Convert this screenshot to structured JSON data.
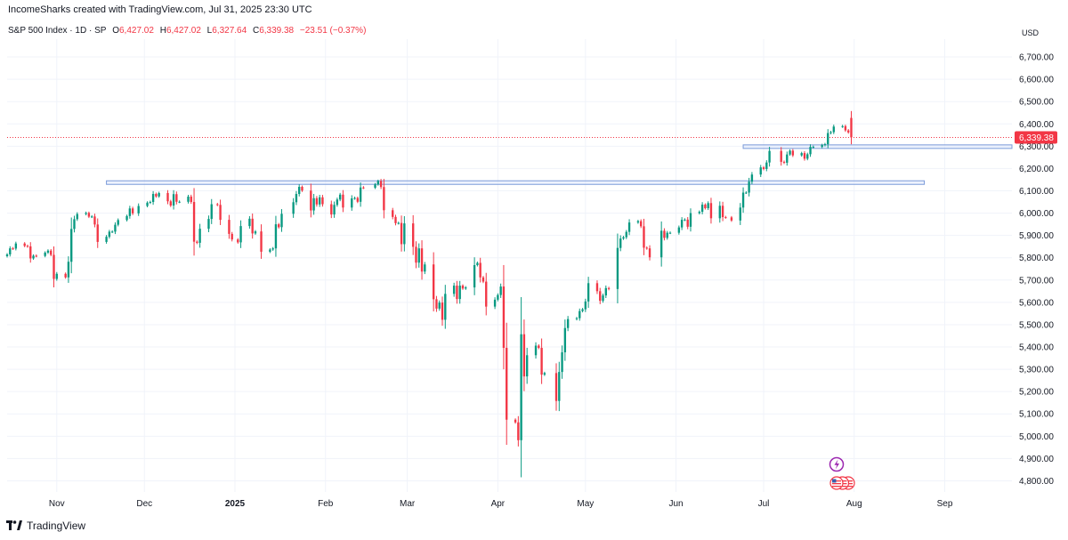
{
  "header": {
    "credit": "IncomeSharks created with TradingView.com, Jul 31, 2025 23:30 UTC"
  },
  "legend": {
    "symbol": "S&P 500 Index · 1D · SP",
    "open_label": "O",
    "open": "6,427.02",
    "high_label": "H",
    "high": "6,427.02",
    "low_label": "L",
    "low": "6,327.64",
    "close_label": "C",
    "close": "6,339.38",
    "change": "−23.51 (−0.37%)"
  },
  "price_axis": {
    "currency": "USD"
  },
  "last_price_label": "6,339.38",
  "branding": {
    "logo_text": "TradingView"
  },
  "colors": {
    "up": "#089981",
    "down": "#f23645",
    "zone_border": "#7b9bd9",
    "zone_fill": "#dfe8fb",
    "grid": "#f0f3fa",
    "axis_text": "#131722",
    "event_purple": "#9c27b0"
  },
  "event_icons": [
    "earnings-lightning-icon",
    "us-flag-icon",
    "us-flag-icon",
    "us-flag-icon"
  ],
  "chart_data": {
    "type": "candlestick",
    "title": "S&P 500 Index · 1D · SP",
    "ylabel": "USD",
    "ylim": [
      4750,
      6780
    ],
    "y_ticks": [
      "6,700.00",
      "6,600.00",
      "6,500.00",
      "6,400.00",
      "6,300.00",
      "6,200.00",
      "6,100.00",
      "6,000.00",
      "5,900.00",
      "5,800.00",
      "5,700.00",
      "5,600.00",
      "5,500.00",
      "5,400.00",
      "5,300.00",
      "5,200.00",
      "5,100.00",
      "5,000.00",
      "4,900.00",
      "4,800.00"
    ],
    "x_ticks": [
      {
        "label": "Nov",
        "date": "2024-11-01",
        "bold": false
      },
      {
        "label": "Dec",
        "date": "2024-12-01",
        "bold": false
      },
      {
        "label": "2025",
        "date": "2025-01-01",
        "bold": true
      },
      {
        "label": "Feb",
        "date": "2025-02-01",
        "bold": false
      },
      {
        "label": "Mar",
        "date": "2025-03-01",
        "bold": false
      },
      {
        "label": "Apr",
        "date": "2025-04-01",
        "bold": false
      },
      {
        "label": "May",
        "date": "2025-05-01",
        "bold": false
      },
      {
        "label": "Jun",
        "date": "2025-06-01",
        "bold": false
      },
      {
        "label": "Jul",
        "date": "2025-07-01",
        "bold": false
      },
      {
        "label": "Aug",
        "date": "2025-08-01",
        "bold": false
      },
      {
        "label": "Sep",
        "date": "2025-09-01",
        "bold": false
      }
    ],
    "x_range": [
      "2024-10-15",
      "2025-09-24"
    ],
    "last_price": 6339.38,
    "zones": [
      {
        "from": "2024-11-18",
        "to": "2025-08-25",
        "low": 6129,
        "high": 6145
      },
      {
        "from": "2025-06-24",
        "to": "2025-09-30",
        "low": 6291,
        "high": 6306
      }
    ],
    "candles": [
      {
        "date": "2024-10-15",
        "close": 5815
      },
      {
        "date": "2024-10-16",
        "close": 5842
      },
      {
        "date": "2024-10-17",
        "close": 5841
      },
      {
        "date": "2024-10-18",
        "close": 5864
      },
      {
        "date": "2024-10-21",
        "close": 5853
      },
      {
        "date": "2024-10-22",
        "close": 5851
      },
      {
        "date": "2024-10-23",
        "close": 5797
      },
      {
        "date": "2024-10-24",
        "close": 5809
      },
      {
        "date": "2024-10-25",
        "close": 5808
      },
      {
        "date": "2024-10-28",
        "close": 5823
      },
      {
        "date": "2024-10-29",
        "close": 5832
      },
      {
        "date": "2024-10-30",
        "close": 5813
      },
      {
        "date": "2024-10-31",
        "close": 5705
      },
      {
        "date": "2024-11-01",
        "close": 5728
      },
      {
        "date": "2024-11-04",
        "close": 5712
      },
      {
        "date": "2024-11-05",
        "close": 5782
      },
      {
        "date": "2024-11-06",
        "close": 5929
      },
      {
        "date": "2024-11-07",
        "close": 5973
      },
      {
        "date": "2024-11-08",
        "close": 5996
      },
      {
        "date": "2024-11-11",
        "close": 6001
      },
      {
        "date": "2024-11-12",
        "close": 5984
      },
      {
        "date": "2024-11-13",
        "close": 5985
      },
      {
        "date": "2024-11-14",
        "close": 5949
      },
      {
        "date": "2024-11-15",
        "close": 5871
      },
      {
        "date": "2024-11-18",
        "close": 5894
      },
      {
        "date": "2024-11-19",
        "close": 5917
      },
      {
        "date": "2024-11-20",
        "close": 5917
      },
      {
        "date": "2024-11-21",
        "close": 5948
      },
      {
        "date": "2024-11-22",
        "close": 5969
      },
      {
        "date": "2024-11-25",
        "close": 5987
      },
      {
        "date": "2024-11-26",
        "close": 6021
      },
      {
        "date": "2024-11-27",
        "close": 5999
      },
      {
        "date": "2024-11-29",
        "close": 6032
      },
      {
        "date": "2024-12-02",
        "close": 6047
      },
      {
        "date": "2024-12-03",
        "close": 6050
      },
      {
        "date": "2024-12-04",
        "close": 6086
      },
      {
        "date": "2024-12-05",
        "close": 6075
      },
      {
        "date": "2024-12-06",
        "close": 6090
      },
      {
        "date": "2024-12-09",
        "close": 6053
      },
      {
        "date": "2024-12-10",
        "close": 6034
      },
      {
        "date": "2024-12-11",
        "close": 6085
      },
      {
        "date": "2024-12-12",
        "close": 6051
      },
      {
        "date": "2024-12-13",
        "close": 6051
      },
      {
        "date": "2024-12-16",
        "close": 6074
      },
      {
        "date": "2024-12-17",
        "close": 6050
      },
      {
        "date": "2024-12-18",
        "close": 5872
      },
      {
        "date": "2024-12-19",
        "close": 5867
      },
      {
        "date": "2024-12-20",
        "close": 5930
      },
      {
        "date": "2024-12-23",
        "close": 5974
      },
      {
        "date": "2024-12-24",
        "close": 6040
      },
      {
        "date": "2024-12-26",
        "close": 6037
      },
      {
        "date": "2024-12-27",
        "close": 5970
      },
      {
        "date": "2024-12-30",
        "close": 5907
      },
      {
        "date": "2024-12-31",
        "close": 5882
      },
      {
        "date": "2025-01-02",
        "close": 5869
      },
      {
        "date": "2025-01-03",
        "close": 5942
      },
      {
        "date": "2025-01-06",
        "close": 5975
      },
      {
        "date": "2025-01-07",
        "close": 5909
      },
      {
        "date": "2025-01-08",
        "close": 5918
      },
      {
        "date": "2025-01-10",
        "close": 5827
      },
      {
        "date": "2025-01-13",
        "close": 5837
      },
      {
        "date": "2025-01-14",
        "close": 5842
      },
      {
        "date": "2025-01-15",
        "close": 5950
      },
      {
        "date": "2025-01-16",
        "close": 5937
      },
      {
        "date": "2025-01-17",
        "close": 5997
      },
      {
        "date": "2025-01-21",
        "close": 6049
      },
      {
        "date": "2025-01-22",
        "close": 6086
      },
      {
        "date": "2025-01-23",
        "close": 6118
      },
      {
        "date": "2025-01-24",
        "close": 6101
      },
      {
        "date": "2025-01-27",
        "close": 6012
      },
      {
        "date": "2025-01-28",
        "close": 6067
      },
      {
        "date": "2025-01-29",
        "close": 6039
      },
      {
        "date": "2025-01-30",
        "close": 6071
      },
      {
        "date": "2025-01-31",
        "close": 6040
      },
      {
        "date": "2025-02-03",
        "close": 5994
      },
      {
        "date": "2025-02-04",
        "close": 6037
      },
      {
        "date": "2025-02-05",
        "close": 6061
      },
      {
        "date": "2025-02-06",
        "close": 6083
      },
      {
        "date": "2025-02-07",
        "close": 6025
      },
      {
        "date": "2025-02-10",
        "close": 6066
      },
      {
        "date": "2025-02-11",
        "close": 6068
      },
      {
        "date": "2025-02-12",
        "close": 6051
      },
      {
        "date": "2025-02-13",
        "close": 6115
      },
      {
        "date": "2025-02-14",
        "close": 6114
      },
      {
        "date": "2025-02-18",
        "close": 6129
      },
      {
        "date": "2025-02-19",
        "close": 6144
      },
      {
        "date": "2025-02-20",
        "close": 6117
      },
      {
        "date": "2025-02-21",
        "close": 6013
      },
      {
        "date": "2025-02-24",
        "close": 5983
      },
      {
        "date": "2025-02-25",
        "close": 5955
      },
      {
        "date": "2025-02-26",
        "close": 5956
      },
      {
        "date": "2025-02-27",
        "close": 5861
      },
      {
        "date": "2025-02-28",
        "close": 5954
      },
      {
        "date": "2025-03-03",
        "close": 5849
      },
      {
        "date": "2025-03-04",
        "close": 5778
      },
      {
        "date": "2025-03-05",
        "close": 5842
      },
      {
        "date": "2025-03-06",
        "close": 5738
      },
      {
        "date": "2025-03-07",
        "close": 5770
      },
      {
        "date": "2025-03-10",
        "close": 5614
      },
      {
        "date": "2025-03-11",
        "close": 5572
      },
      {
        "date": "2025-03-12",
        "close": 5599
      },
      {
        "date": "2025-03-13",
        "close": 5522
      },
      {
        "date": "2025-03-14",
        "close": 5638
      },
      {
        "date": "2025-03-17",
        "close": 5675
      },
      {
        "date": "2025-03-18",
        "close": 5615
      },
      {
        "date": "2025-03-19",
        "close": 5675
      },
      {
        "date": "2025-03-20",
        "close": 5662
      },
      {
        "date": "2025-03-21",
        "close": 5667
      },
      {
        "date": "2025-03-24",
        "close": 5767
      },
      {
        "date": "2025-03-25",
        "close": 5777
      },
      {
        "date": "2025-03-26",
        "close": 5712
      },
      {
        "date": "2025-03-27",
        "close": 5693
      },
      {
        "date": "2025-03-28",
        "close": 5581
      },
      {
        "date": "2025-03-31",
        "close": 5612
      },
      {
        "date": "2025-04-01",
        "close": 5633
      },
      {
        "date": "2025-04-02",
        "close": 5671
      },
      {
        "date": "2025-04-03",
        "close": 5396
      },
      {
        "date": "2025-04-04",
        "close": 5074
      },
      {
        "date": "2025-04-07",
        "close": 5062
      },
      {
        "date": "2025-04-08",
        "close": 4982
      },
      {
        "date": "2025-04-09",
        "close": 5457
      },
      {
        "date": "2025-04-10",
        "close": 5268
      },
      {
        "date": "2025-04-11",
        "close": 5363
      },
      {
        "date": "2025-04-14",
        "close": 5406
      },
      {
        "date": "2025-04-15",
        "close": 5396
      },
      {
        "date": "2025-04-16",
        "close": 5276
      },
      {
        "date": "2025-04-17",
        "close": 5283
      },
      {
        "date": "2025-04-21",
        "close": 5158
      },
      {
        "date": "2025-04-22",
        "close": 5288
      },
      {
        "date": "2025-04-23",
        "close": 5376
      },
      {
        "date": "2025-04-24",
        "close": 5485
      },
      {
        "date": "2025-04-25",
        "close": 5525
      },
      {
        "date": "2025-04-28",
        "close": 5529
      },
      {
        "date": "2025-04-29",
        "close": 5561
      },
      {
        "date": "2025-04-30",
        "close": 5569
      },
      {
        "date": "2025-05-01",
        "close": 5604
      },
      {
        "date": "2025-05-02",
        "close": 5686
      },
      {
        "date": "2025-05-05",
        "close": 5650
      },
      {
        "date": "2025-05-06",
        "close": 5607
      },
      {
        "date": "2025-05-07",
        "close": 5631
      },
      {
        "date": "2025-05-08",
        "close": 5664
      },
      {
        "date": "2025-05-09",
        "close": 5660
      },
      {
        "date": "2025-05-12",
        "close": 5844
      },
      {
        "date": "2025-05-13",
        "close": 5886
      },
      {
        "date": "2025-05-14",
        "close": 5892
      },
      {
        "date": "2025-05-15",
        "close": 5916
      },
      {
        "date": "2025-05-16",
        "close": 5958
      },
      {
        "date": "2025-05-19",
        "close": 5964
      },
      {
        "date": "2025-05-20",
        "close": 5941
      },
      {
        "date": "2025-05-21",
        "close": 5845
      },
      {
        "date": "2025-05-22",
        "close": 5842
      },
      {
        "date": "2025-05-23",
        "close": 5802
      },
      {
        "date": "2025-05-27",
        "close": 5921
      },
      {
        "date": "2025-05-28",
        "close": 5889
      },
      {
        "date": "2025-05-29",
        "close": 5912
      },
      {
        "date": "2025-05-30",
        "close": 5912
      },
      {
        "date": "2025-06-02",
        "close": 5936
      },
      {
        "date": "2025-06-03",
        "close": 5970
      },
      {
        "date": "2025-06-04",
        "close": 5971
      },
      {
        "date": "2025-06-05",
        "close": 5939
      },
      {
        "date": "2025-06-06",
        "close": 6000
      },
      {
        "date": "2025-06-09",
        "close": 6006
      },
      {
        "date": "2025-06-10",
        "close": 6038
      },
      {
        "date": "2025-06-11",
        "close": 6022
      },
      {
        "date": "2025-06-12",
        "close": 6045
      },
      {
        "date": "2025-06-13",
        "close": 5977
      },
      {
        "date": "2025-06-16",
        "close": 6033
      },
      {
        "date": "2025-06-17",
        "close": 5982
      },
      {
        "date": "2025-06-18",
        "close": 5981
      },
      {
        "date": "2025-06-20",
        "close": 5967
      },
      {
        "date": "2025-06-23",
        "close": 6025
      },
      {
        "date": "2025-06-24",
        "close": 6092
      },
      {
        "date": "2025-06-25",
        "close": 6092
      },
      {
        "date": "2025-06-26",
        "close": 6141
      },
      {
        "date": "2025-06-27",
        "close": 6173
      },
      {
        "date": "2025-06-30",
        "close": 6205
      },
      {
        "date": "2025-07-01",
        "close": 6198
      },
      {
        "date": "2025-07-02",
        "close": 6227
      },
      {
        "date": "2025-07-03",
        "close": 6279
      },
      {
        "date": "2025-07-07",
        "close": 6230
      },
      {
        "date": "2025-07-08",
        "close": 6226
      },
      {
        "date": "2025-07-09",
        "close": 6263
      },
      {
        "date": "2025-07-10",
        "close": 6280
      },
      {
        "date": "2025-07-11",
        "close": 6259
      },
      {
        "date": "2025-07-14",
        "close": 6269
      },
      {
        "date": "2025-07-15",
        "close": 6244
      },
      {
        "date": "2025-07-16",
        "close": 6264
      },
      {
        "date": "2025-07-17",
        "close": 6297
      },
      {
        "date": "2025-07-18",
        "close": 6297
      },
      {
        "date": "2025-07-21",
        "close": 6305
      },
      {
        "date": "2025-07-22",
        "close": 6309
      },
      {
        "date": "2025-07-23",
        "close": 6359
      },
      {
        "date": "2025-07-24",
        "close": 6363
      },
      {
        "date": "2025-07-25",
        "close": 6388
      },
      {
        "date": "2025-07-28",
        "close": 6390
      },
      {
        "date": "2025-07-29",
        "close": 6371
      },
      {
        "date": "2025-07-30",
        "close": 6362
      },
      {
        "date": "2025-07-31",
        "close": 6339.38
      }
    ]
  }
}
